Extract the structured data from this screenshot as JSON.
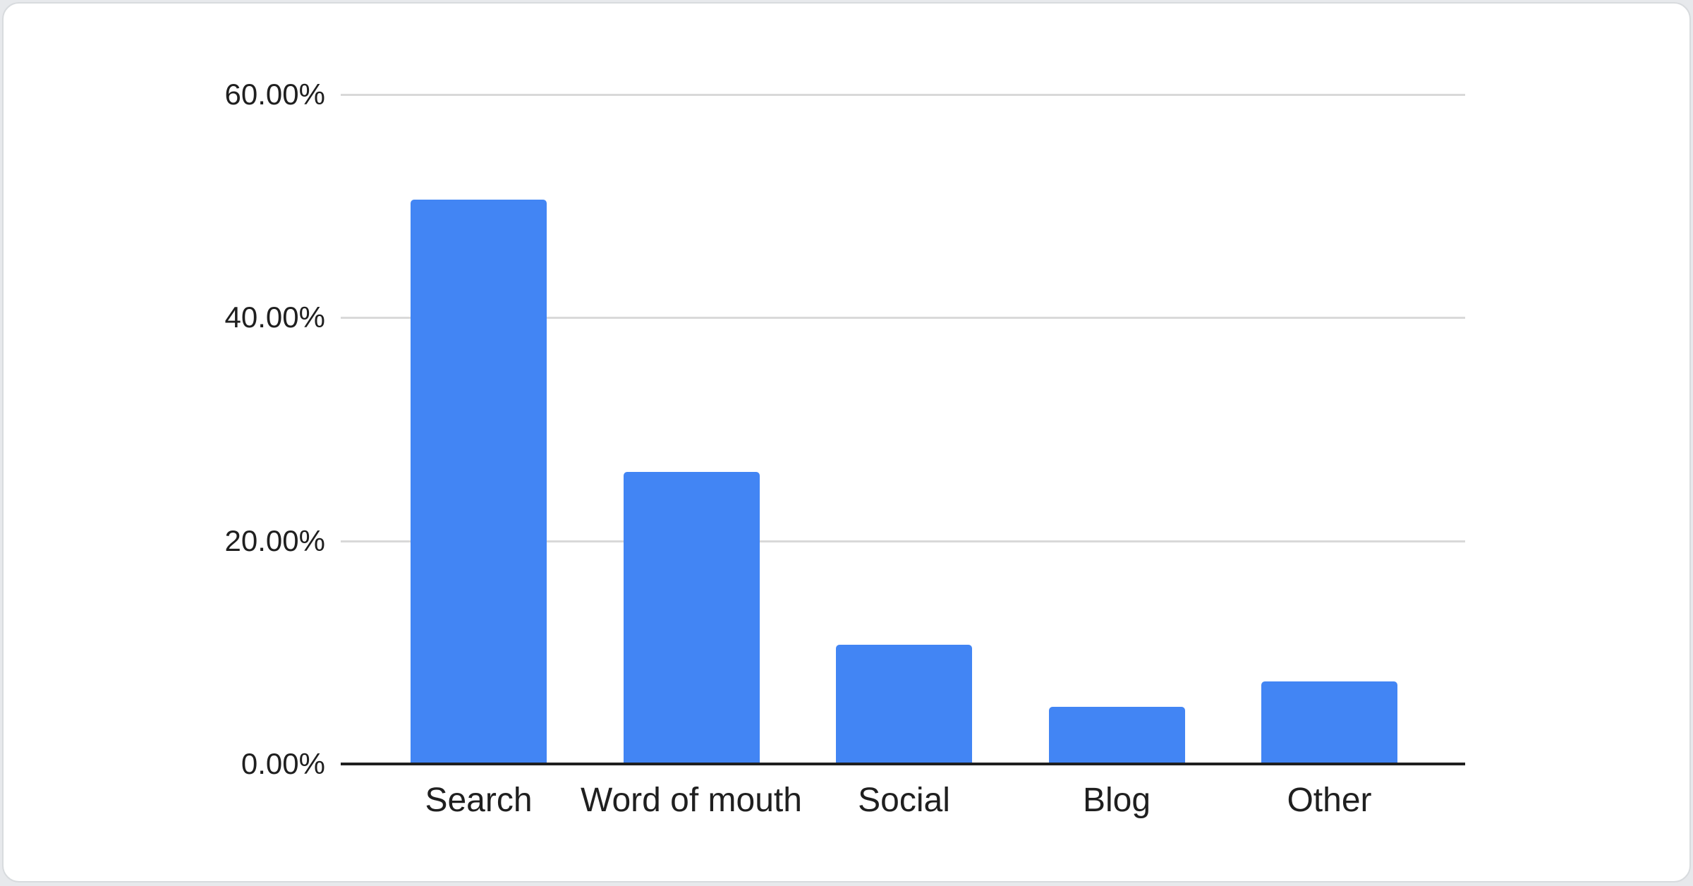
{
  "chart_data": {
    "type": "bar",
    "title": "",
    "xlabel": "",
    "ylabel": "",
    "categories": [
      "Search",
      "Word of mouth",
      "Social",
      "Blog",
      "Other"
    ],
    "values": [
      50.6,
      26.2,
      10.7,
      5.1,
      7.4
    ],
    "unit": "%",
    "ylim": [
      0,
      60
    ],
    "y_ticks": [
      {
        "value": 60,
        "label": "60.00%"
      },
      {
        "value": 40,
        "label": "40.00%"
      },
      {
        "value": 20,
        "label": "20.00%"
      },
      {
        "value": 0,
        "label": "0.00%"
      }
    ],
    "grid": true,
    "legend": "none",
    "bar_color": "#4285f4"
  },
  "colors": {
    "bar": "#4285f4",
    "grid_line": "#d9d9d9",
    "axis_line": "#1f1f1f",
    "label_text": "#1f1f1f",
    "card_bg": "#ffffff",
    "card_border": "#d8dbde",
    "page_bg": "#e7e9ec"
  }
}
